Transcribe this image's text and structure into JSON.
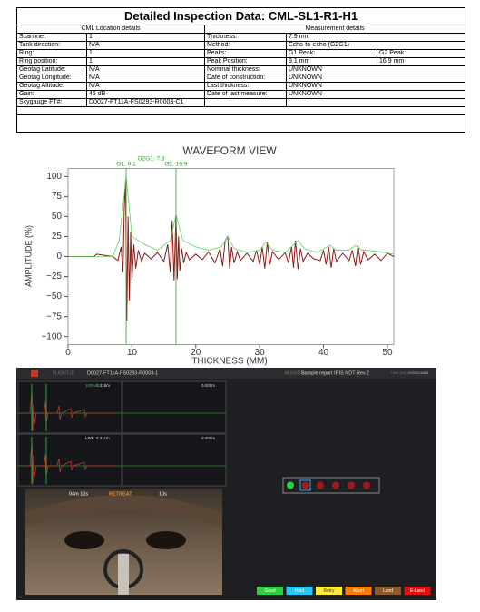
{
  "table": {
    "title": "Detailed Inspection Data: CML-SL1-R1-H1",
    "left_header": "CML Location details",
    "right_header": "Measurement details",
    "left_rows": [
      [
        "Scanline:",
        "1"
      ],
      [
        "Tank direction:",
        "N/A"
      ],
      [
        "Ring:",
        "1"
      ],
      [
        "Ring position:",
        "1"
      ],
      [
        "Geotag Latitude:",
        "N/A"
      ],
      [
        "Geotag Longitude:",
        "N/A"
      ],
      [
        "Geotag Altitude:",
        "N/A"
      ],
      [
        "Gain:",
        "45 dB"
      ],
      [
        "Skygauge FT#:",
        "D0027-FT11A-FS0293-R0003-C1"
      ]
    ],
    "right_rows": [
      [
        "Thickness:",
        "7.9 mm"
      ],
      [
        "Method:",
        "Echo-to-echo (G2G1)"
      ],
      [
        "Peaks:",
        "G1 Peak:",
        "G2 Peak:"
      ],
      [
        "Peak Position:",
        "9.1 mm",
        "16.9 mm"
      ],
      [
        "Nominal thickness:",
        "UNKNOWN"
      ],
      [
        "Date of construction:",
        "UNKNOWN"
      ],
      [
        "Last thickness:",
        "UNKNOWN"
      ],
      [
        "Date of last measure:",
        "UNKNOWN"
      ]
    ]
  },
  "chart_data": {
    "type": "line",
    "title": "WAVEFORM VIEW",
    "x_label": "THICKNESS (MM)",
    "y_label": "AMPLITUDE (%)",
    "xlim": [
      0,
      51
    ],
    "ylim": [
      -110,
      110
    ],
    "xticks": [
      0,
      10,
      20,
      30,
      40,
      50
    ],
    "yticks": [
      {
        "value": -100,
        "label": "−100"
      },
      {
        "value": -75,
        "label": "−75"
      },
      {
        "value": -50,
        "label": "−50"
      },
      {
        "value": -25,
        "label": "−25"
      },
      0,
      25,
      50,
      75,
      100
    ],
    "annotations": [
      {
        "text": "G1: 9.1",
        "x": 9.1
      },
      {
        "text": "G2: 16.9",
        "x": 16.9
      }
    ],
    "gap_label": "G2G1: 7.8",
    "annotation_color": "#2ca02c",
    "series": [
      {
        "color": "#8b1a1a",
        "x": [
          0,
          4,
          4.5,
          7,
          7.8,
          8.3,
          8.6,
          8.8,
          9.0,
          9.2,
          9.4,
          9.6,
          9.8,
          10.0,
          10.3,
          10.6,
          11,
          11.5,
          12,
          13,
          14,
          15,
          15.6,
          16,
          16.3,
          16.6,
          16.9,
          17.1,
          17.3,
          17.5,
          17.8,
          18.1,
          18.5,
          19,
          20,
          21,
          22,
          23,
          23.8,
          24.2,
          24.6,
          25,
          25.3,
          25.6,
          26,
          26.5,
          27,
          28,
          29,
          29.5,
          30,
          30.4,
          30.8,
          31.2,
          31.6,
          32,
          33,
          34,
          34.5,
          35,
          35.3,
          35.6,
          36,
          36.4,
          36.8,
          37.5,
          38.5,
          39.5,
          40,
          40.4,
          40.8,
          41.2,
          41.6,
          42,
          43,
          44,
          44.5,
          45,
          45.4,
          45.8,
          46.3,
          47,
          48,
          49,
          50,
          51
        ],
        "values": [
          0,
          0,
          3,
          0,
          -5,
          12,
          -20,
          60,
          95,
          -80,
          50,
          -55,
          30,
          -30,
          15,
          -15,
          8,
          -6,
          4,
          -3,
          5,
          -6,
          15,
          -20,
          45,
          -30,
          52,
          -28,
          25,
          -18,
          10,
          -8,
          5,
          -4,
          3,
          -4,
          6,
          -8,
          10,
          -12,
          20,
          25,
          -15,
          12,
          -8,
          6,
          -5,
          4,
          -6,
          8,
          -10,
          12,
          -15,
          18,
          -10,
          6,
          -4,
          5,
          -8,
          12,
          -14,
          20,
          -16,
          10,
          -6,
          4,
          -3,
          -5,
          8,
          -10,
          12,
          -14,
          10,
          -6,
          4,
          -5,
          8,
          -12,
          14,
          -10,
          6,
          -4,
          3,
          -5,
          4,
          0
        ]
      },
      {
        "color": "#5fd35f",
        "x": [
          0,
          7,
          8,
          9.1,
          10,
          12,
          14,
          16,
          16.9,
          18,
          20,
          22,
          24,
          25,
          26,
          28,
          30,
          31,
          32,
          34,
          36,
          37,
          39,
          41,
          42,
          44,
          45,
          46,
          48,
          51
        ],
        "values": [
          0,
          0,
          20,
          100,
          25,
          15,
          8,
          20,
          52,
          20,
          12,
          8,
          12,
          25,
          10,
          5,
          8,
          18,
          8,
          5,
          20,
          10,
          5,
          14,
          8,
          8,
          14,
          8,
          7,
          3
        ]
      }
    ]
  },
  "screenshot": {
    "flight_label": "FLIGHT ID",
    "flight_id": "D0027-FT11A-FS0293-R0003-1",
    "mission_label": "MISSION",
    "mission": "Sample report IRIS NDT Rev.2",
    "time_label": "TIME (UK)",
    "time": "0250014858",
    "panel_labels": [
      "100%",
      "0.318m",
      "0.000m",
      "LIVE",
      "0.311m",
      "0.000m"
    ],
    "camera_labels": [
      "04m 10s",
      "RETREAT",
      "10s"
    ],
    "buttons": [
      "Good",
      "Hold",
      "Retry",
      "Abort",
      "Land",
      "E-Land"
    ]
  }
}
